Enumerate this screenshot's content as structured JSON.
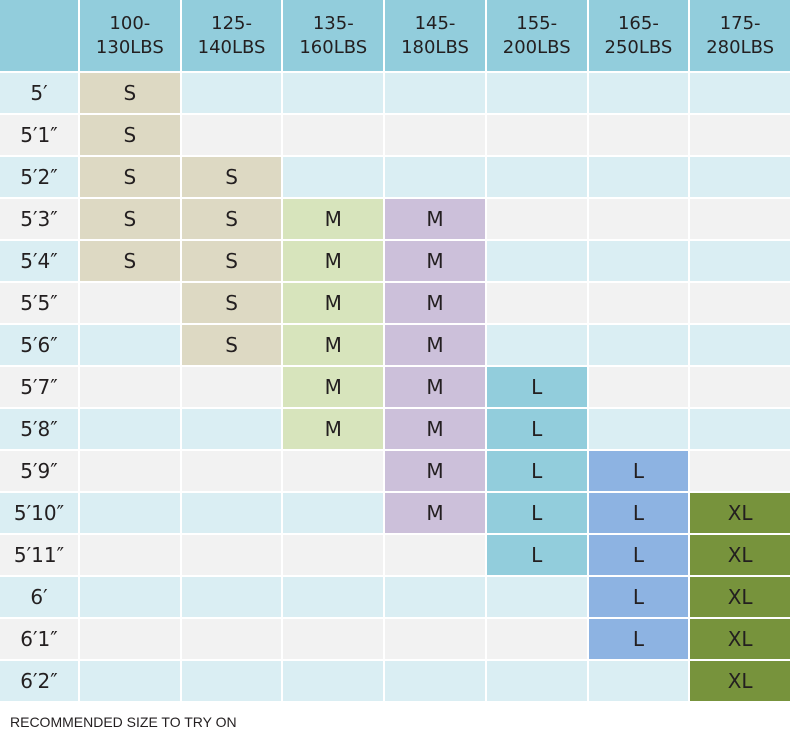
{
  "table": {
    "columns": [
      [
        "100-",
        "130LBS"
      ],
      [
        "125-",
        "140LBS"
      ],
      [
        "135-",
        "160LBS"
      ],
      [
        "145-",
        "180LBS"
      ],
      [
        "155-",
        "200LBS"
      ],
      [
        "165-",
        "250LBS"
      ],
      [
        "175-",
        "280LBS"
      ]
    ],
    "rows": [
      {
        "height": "5′",
        "sizes": [
          "S",
          null,
          null,
          null,
          null,
          null,
          null
        ]
      },
      {
        "height": "5′1″",
        "sizes": [
          "S",
          null,
          null,
          null,
          null,
          null,
          null
        ]
      },
      {
        "height": "5′2″",
        "sizes": [
          "S",
          "S",
          null,
          null,
          null,
          null,
          null
        ]
      },
      {
        "height": "5′3″",
        "sizes": [
          "S",
          "S",
          "M",
          "M",
          null,
          null,
          null
        ]
      },
      {
        "height": "5′4″",
        "sizes": [
          "S",
          "S",
          "M",
          "M",
          null,
          null,
          null
        ]
      },
      {
        "height": "5′5″",
        "sizes": [
          null,
          "S",
          "M",
          "M",
          null,
          null,
          null
        ]
      },
      {
        "height": "5′6″",
        "sizes": [
          null,
          "S",
          "M",
          "M",
          null,
          null,
          null
        ]
      },
      {
        "height": "5′7″",
        "sizes": [
          null,
          null,
          "M",
          "M",
          "L",
          null,
          null
        ]
      },
      {
        "height": "5′8″",
        "sizes": [
          null,
          null,
          "M",
          "M",
          "L",
          null,
          null
        ]
      },
      {
        "height": "5′9″",
        "sizes": [
          null,
          null,
          null,
          "M",
          "L",
          "L",
          null
        ]
      },
      {
        "height": "5′10″",
        "sizes": [
          null,
          null,
          null,
          "M",
          "L",
          "L",
          "XL"
        ]
      },
      {
        "height": "5′11″",
        "sizes": [
          null,
          null,
          null,
          null,
          "L",
          "L",
          "XL"
        ]
      },
      {
        "height": "6′",
        "sizes": [
          null,
          null,
          null,
          null,
          null,
          "L",
          "XL"
        ]
      },
      {
        "height": "6′1″",
        "sizes": [
          null,
          null,
          null,
          null,
          null,
          "L",
          "XL"
        ]
      },
      {
        "height": "6′2″",
        "sizes": [
          null,
          null,
          null,
          null,
          null,
          null,
          "XL"
        ]
      }
    ]
  },
  "footer": "RECOMMENDED SIZE TO TRY ON"
}
